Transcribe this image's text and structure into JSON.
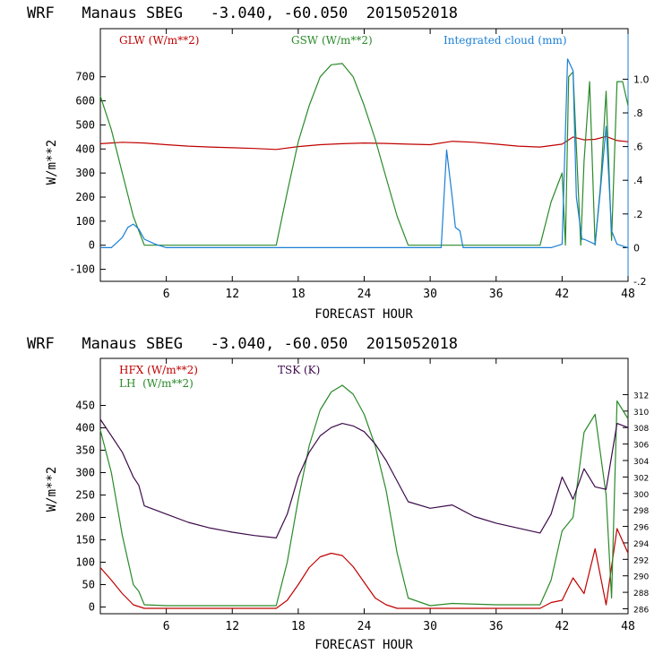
{
  "chart_data": [
    {
      "type": "line",
      "title": "WRF   Manaus SBEG   -3.040, -60.050  2015052018",
      "xlabel": "FORECAST HOUR",
      "ylabel": "W/m**2",
      "xlim": [
        0,
        48
      ],
      "ylim": [
        -150,
        900
      ],
      "xticks": [
        6,
        12,
        18,
        24,
        30,
        36,
        42,
        48
      ],
      "yticks": [
        -100,
        0,
        100,
        200,
        300,
        400,
        500,
        600,
        700
      ],
      "ytick_labels": [
        "-100",
        "0",
        "100",
        "200",
        "300",
        "400",
        "500",
        "600",
        "700"
      ],
      "right_axis": {
        "ylim": [
          -0.2,
          1.3
        ],
        "ticks": [
          -0.2,
          0,
          0.2,
          0.4,
          0.6,
          0.8,
          1.0
        ],
        "tick_labels": [
          "-.2",
          "0",
          ".2",
          ".4",
          ".6",
          ".8",
          "1.0"
        ]
      },
      "series": [
        {
          "name": "GLW (W/m**2)",
          "color": "#c00000",
          "axis": "left",
          "x": [
            0,
            2,
            4,
            6,
            8,
            10,
            12,
            14,
            16,
            18,
            20,
            22,
            24,
            26,
            28,
            30,
            32,
            34,
            36,
            38,
            40,
            42,
            43,
            44,
            45,
            46,
            47,
            48
          ],
          "y": [
            422,
            428,
            425,
            418,
            412,
            408,
            405,
            402,
            398,
            410,
            418,
            422,
            425,
            423,
            420,
            418,
            432,
            428,
            420,
            412,
            408,
            420,
            450,
            438,
            440,
            452,
            435,
            430
          ]
        },
        {
          "name": "GSW (W/m**2)",
          "color": "#2a8a2a",
          "axis": "left",
          "x": [
            0,
            1,
            2,
            3,
            4,
            16,
            17,
            18,
            19,
            20,
            21,
            22,
            23,
            24,
            25,
            26,
            27,
            28,
            40,
            41,
            42,
            42.3,
            42.6,
            43,
            43.4,
            43.7,
            44,
            44.5,
            45,
            45.5,
            46,
            46.5,
            47,
            47.5,
            48
          ],
          "y": [
            620,
            480,
            300,
            120,
            0,
            0,
            220,
            430,
            580,
            700,
            750,
            755,
            700,
            580,
            440,
            280,
            120,
            0,
            0,
            180,
            300,
            0,
            700,
            720,
            300,
            0,
            350,
            680,
            0,
            250,
            640,
            20,
            680,
            680,
            580
          ]
        },
        {
          "name": "Integrated cloud (mm)",
          "color": "#1a7fd6",
          "axis": "right",
          "x": [
            0,
            1,
            2,
            2.5,
            3,
            3.5,
            4,
            5,
            6,
            8,
            12,
            16,
            20,
            24,
            28,
            31,
            31.5,
            32,
            32.3,
            32.7,
            33,
            34,
            36,
            38,
            40,
            41,
            42,
            42.5,
            43,
            43.3,
            43.8,
            44,
            45,
            45.5,
            46,
            46.5,
            47,
            48
          ],
          "y": [
            0,
            0,
            0.06,
            0.12,
            0.14,
            0.11,
            0.05,
            0.02,
            0.0,
            0.0,
            0.0,
            0.0,
            0.0,
            0.0,
            0.0,
            0.0,
            0.58,
            0.3,
            0.12,
            0.1,
            0.0,
            0.0,
            0.0,
            0.0,
            0.0,
            0.0,
            0.02,
            1.12,
            1.05,
            0.3,
            0.05,
            0.05,
            0.02,
            0.35,
            0.72,
            0.1,
            0.02,
            0.0
          ]
        }
      ]
    },
    {
      "type": "line",
      "title": "WRF   Manaus SBEG   -3.040, -60.050  2015052018",
      "xlabel": "FORECAST HOUR",
      "ylabel": "W/m**2",
      "xlim": [
        0,
        48
      ],
      "ylim": [
        -15,
        555
      ],
      "xticks": [
        6,
        12,
        18,
        24,
        30,
        36,
        42,
        48
      ],
      "yticks": [
        0,
        50,
        100,
        150,
        200,
        250,
        300,
        350,
        400,
        450
      ],
      "ytick_labels": [
        "0",
        "50",
        "100",
        "150",
        "200",
        "250",
        "300",
        "350",
        "400",
        "450"
      ],
      "right_axis": {
        "ylim": [
          285.4,
          316.4
        ],
        "ticks": [
          286,
          288,
          290,
          292,
          294,
          296,
          298,
          300,
          302,
          304,
          306,
          308,
          310,
          312
        ],
        "tick_labels": [
          "286",
          "288",
          "290",
          "292",
          "294",
          "296",
          "298",
          "300",
          "302",
          "304",
          "306",
          "308",
          "310",
          "312"
        ]
      },
      "series": [
        {
          "name": "HFX (W/m**2)",
          "color": "#c00000",
          "axis": "left",
          "x": [
            0,
            1,
            2,
            3,
            4,
            6,
            12,
            16,
            17,
            18,
            19,
            20,
            21,
            22,
            23,
            24,
            25,
            26,
            27,
            30,
            36,
            40,
            41,
            42,
            43,
            44,
            45,
            46,
            47,
            48
          ],
          "y": [
            88,
            60,
            30,
            5,
            -3,
            -3,
            -3,
            -3,
            15,
            50,
            88,
            112,
            120,
            115,
            90,
            55,
            20,
            5,
            -3,
            -3,
            -3,
            -3,
            10,
            15,
            65,
            30,
            130,
            5,
            175,
            120
          ]
        },
        {
          "name": "LH  (W/m**2)",
          "color": "#2a8a2a",
          "axis": "left",
          "x": [
            0,
            1,
            2,
            3,
            3.5,
            4,
            6,
            12,
            16,
            17,
            18,
            19,
            20,
            21,
            22,
            23,
            24,
            25,
            26,
            27,
            28,
            30,
            32,
            36,
            40,
            41,
            42,
            43,
            44,
            45,
            46,
            46.5,
            47,
            48
          ],
          "y": [
            395,
            300,
            160,
            50,
            35,
            5,
            3,
            3,
            3,
            100,
            240,
            360,
            440,
            480,
            495,
            475,
            430,
            360,
            260,
            120,
            20,
            3,
            8,
            5,
            5,
            60,
            170,
            200,
            390,
            430,
            250,
            20,
            460,
            420
          ]
        },
        {
          "name": "TSK (K)",
          "color": "#3c0a4a",
          "axis": "right",
          "x": [
            0,
            1,
            2,
            3,
            3.5,
            4,
            6,
            8,
            10,
            12,
            14,
            16,
            17,
            18,
            19,
            20,
            21,
            22,
            23,
            24,
            25,
            26,
            27,
            28,
            30,
            32,
            34,
            36,
            38,
            40,
            41,
            42,
            43,
            44,
            45,
            46,
            47,
            48
          ],
          "y": [
            309,
            307,
            305,
            302,
            301,
            298.5,
            297.5,
            296.5,
            295.8,
            295.3,
            294.9,
            294.6,
            297.5,
            302,
            305,
            307,
            308,
            308.5,
            308.2,
            307.5,
            306,
            304,
            301.5,
            299,
            298.2,
            298.6,
            297.2,
            296.4,
            295.8,
            295.2,
            297.5,
            302,
            299.3,
            303,
            300.8,
            300.5,
            308.5,
            308
          ]
        }
      ]
    }
  ]
}
